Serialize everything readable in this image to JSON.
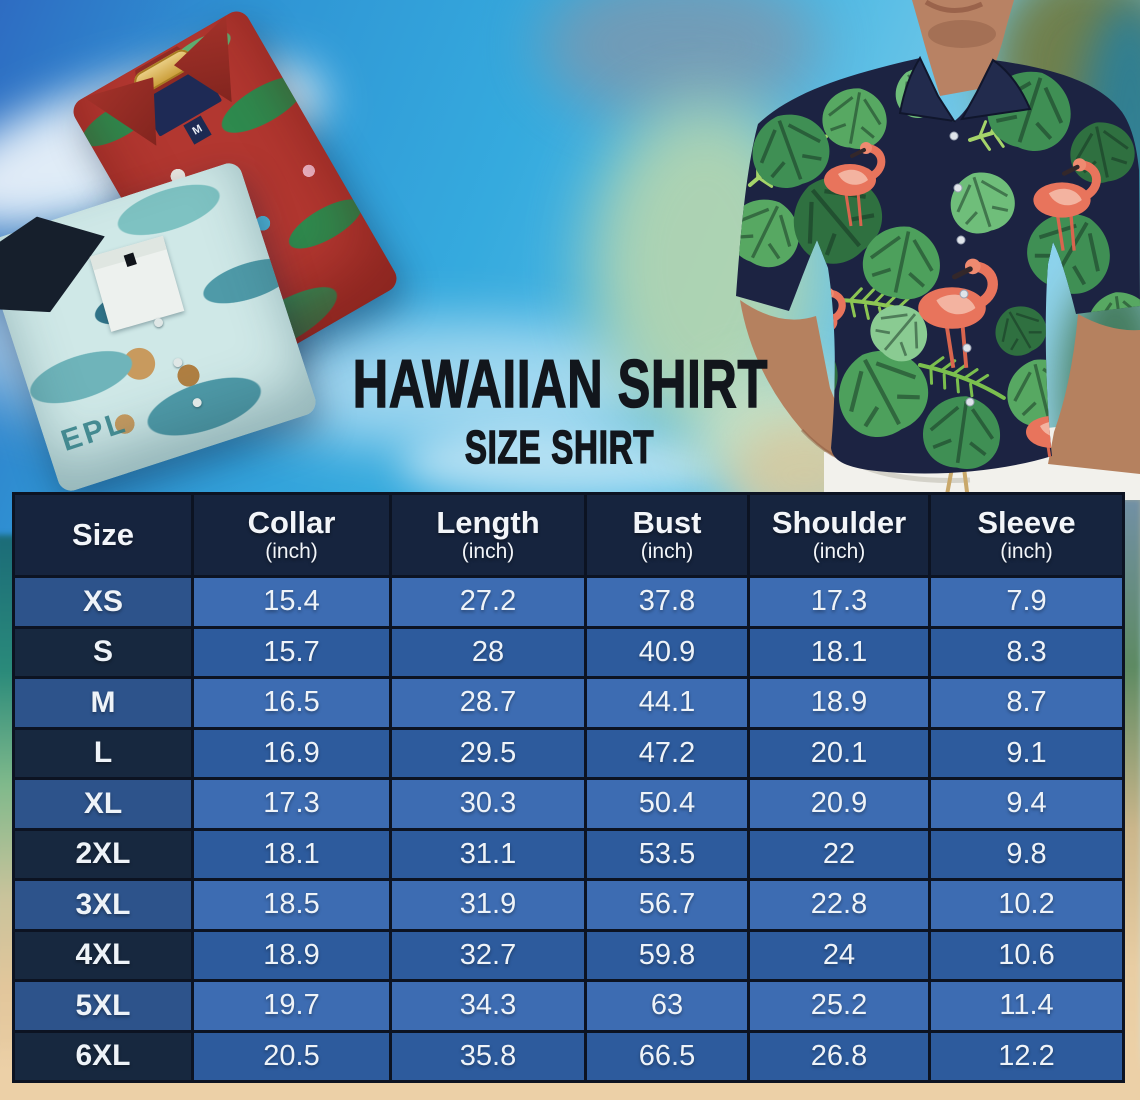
{
  "header": {
    "title": "HAWAIIAN SHIRT",
    "subtitle": "SIZE SHIRT"
  },
  "chart_data": {
    "type": "table",
    "title": "HAWAIIAN SHIRT",
    "subtitle": "SIZE SHIRT",
    "columns": [
      {
        "label": "Size",
        "unit": ""
      },
      {
        "label": "Collar",
        "unit": "(inch)"
      },
      {
        "label": "Length",
        "unit": "(inch)"
      },
      {
        "label": "Bust",
        "unit": "(inch)"
      },
      {
        "label": "Shoulder",
        "unit": "(inch)"
      },
      {
        "label": "Sleeve",
        "unit": "(inch)"
      }
    ],
    "rows": [
      {
        "size": "XS",
        "values": [
          "15.4",
          "27.2",
          "37.8",
          "17.3",
          "7.9"
        ]
      },
      {
        "size": "S",
        "values": [
          "15.7",
          "28",
          "40.9",
          "18.1",
          "8.3"
        ]
      },
      {
        "size": "M",
        "values": [
          "16.5",
          "28.7",
          "44.1",
          "18.9",
          "8.7"
        ]
      },
      {
        "size": "L",
        "values": [
          "16.9",
          "29.5",
          "47.2",
          "20.1",
          "9.1"
        ]
      },
      {
        "size": "XL",
        "values": [
          "17.3",
          "30.3",
          "50.4",
          "20.9",
          "9.4"
        ]
      },
      {
        "size": "2XL",
        "values": [
          "18.1",
          "31.1",
          "53.5",
          "22",
          "9.8"
        ]
      },
      {
        "size": "3XL",
        "values": [
          "18.5",
          "31.9",
          "56.7",
          "22.8",
          "10.2"
        ]
      },
      {
        "size": "4XL",
        "values": [
          "18.9",
          "32.7",
          "59.8",
          "24",
          "10.6"
        ]
      },
      {
        "size": "5XL",
        "values": [
          "19.7",
          "34.3",
          "63",
          "25.2",
          "11.4"
        ]
      },
      {
        "size": "6XL",
        "values": [
          "20.5",
          "35.8",
          "66.5",
          "26.8",
          "12.2"
        ]
      }
    ]
  },
  "decor": {
    "red_shirt_size_tag": "M",
    "teal_shirt_print": "EPL"
  },
  "colors": {
    "table_header_bg": "#16243E",
    "row_label_odd": "#2D538B",
    "row_label_even": "#17283F",
    "cell_odd": "#3D6CB2",
    "cell_even": "#2D5B9D",
    "grid_line": "#0C1322",
    "sand": "#ECD0A7",
    "sky_deep": "#2E6CC2",
    "sky_azure": "#35AADE",
    "title_ink": "#12161C"
  }
}
